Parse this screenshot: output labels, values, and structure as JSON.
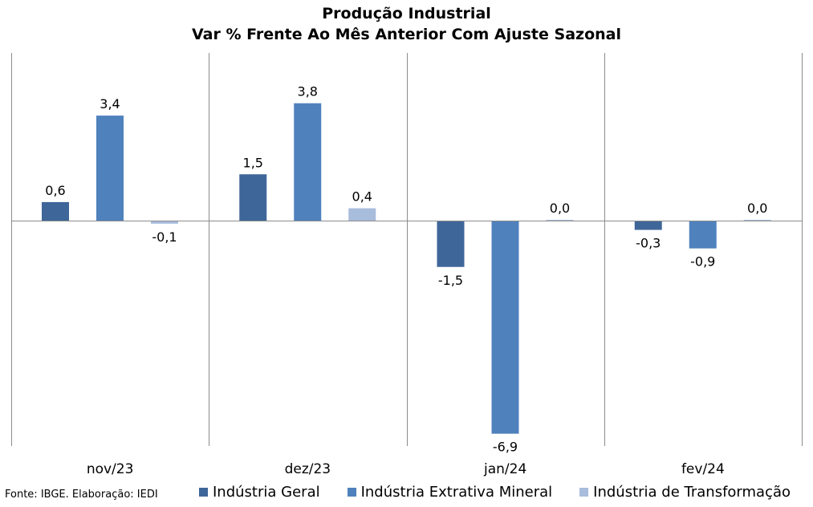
{
  "chart_data": {
    "type": "bar",
    "title": "Produção Industrial",
    "subtitle": "Var % Frente Ao Mês Anterior Com Ajuste Sazonal",
    "categories": [
      "nov/23",
      "dez/23",
      "jan/24",
      "fev/24"
    ],
    "series": [
      {
        "name": "Indústria Geral",
        "color": "#3f6699",
        "values": [
          0.6,
          1.5,
          -1.5,
          -0.3
        ],
        "labels": [
          "0,6",
          "1,5",
          "-1,5",
          "-0,3"
        ]
      },
      {
        "name": "Indústria Extrativa Mineral",
        "color": "#4f81bd",
        "values": [
          3.4,
          3.8,
          -6.9,
          -0.9
        ],
        "labels": [
          "3,4",
          "3,8",
          "-6,9",
          "-0,9"
        ]
      },
      {
        "name": "Indústria de Transformação",
        "color": "#a8bcdc",
        "values": [
          -0.1,
          0.4,
          0.0,
          0.0
        ],
        "labels": [
          "-0,1",
          "0,4",
          "0,0",
          "0,0"
        ]
      }
    ],
    "ylim": [
      -7.8,
      5.8
    ],
    "grid": false,
    "legend_position": "bottom"
  },
  "source_note": "Fonte: IBGE. Elaboração: IEDI"
}
